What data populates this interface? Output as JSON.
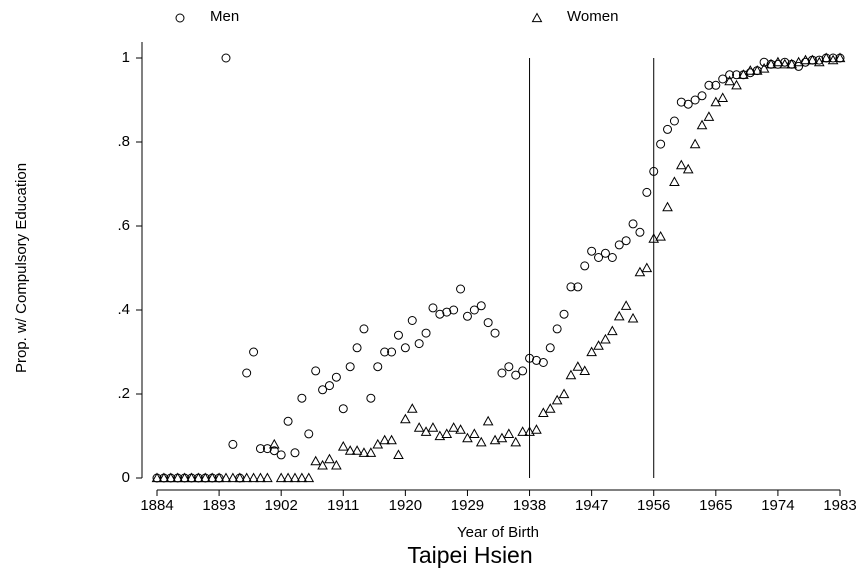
{
  "chart_data": {
    "type": "scatter",
    "title": "Taipei Hsien",
    "xlabel": "Year of Birth",
    "ylabel": "Prop. w/ Compulsory Education",
    "x": [
      1884,
      1885,
      1886,
      1887,
      1888,
      1889,
      1890,
      1891,
      1892,
      1893,
      1894,
      1895,
      1896,
      1897,
      1898,
      1899,
      1900,
      1901,
      1902,
      1903,
      1904,
      1905,
      1906,
      1907,
      1908,
      1909,
      1910,
      1911,
      1912,
      1913,
      1914,
      1915,
      1916,
      1917,
      1918,
      1919,
      1920,
      1921,
      1922,
      1923,
      1924,
      1925,
      1926,
      1927,
      1928,
      1929,
      1930,
      1931,
      1932,
      1933,
      1934,
      1935,
      1936,
      1937,
      1938,
      1939,
      1940,
      1941,
      1942,
      1943,
      1944,
      1945,
      1946,
      1947,
      1948,
      1949,
      1950,
      1951,
      1952,
      1953,
      1954,
      1955,
      1956,
      1957,
      1958,
      1959,
      1960,
      1961,
      1962,
      1963,
      1964,
      1965,
      1966,
      1967,
      1968,
      1969,
      1970,
      1971,
      1972,
      1973,
      1974,
      1975,
      1976,
      1977,
      1978,
      1979,
      1980,
      1981,
      1982,
      1983
    ],
    "series": [
      {
        "name": "Men",
        "marker": "circle",
        "color": "#000000",
        "values": [
          0,
          0,
          0,
          0,
          0,
          0,
          0,
          0,
          0,
          0,
          1,
          0.08,
          0,
          0.25,
          0.3,
          0.07,
          0.07,
          0.065,
          0.055,
          0.135,
          0.06,
          0.19,
          0.105,
          0.255,
          0.21,
          0.22,
          0.24,
          0.165,
          0.265,
          0.31,
          0.355,
          0.19,
          0.265,
          0.3,
          0.3,
          0.34,
          0.31,
          0.375,
          0.32,
          0.345,
          0.405,
          0.39,
          0.395,
          0.4,
          0.45,
          0.385,
          0.4,
          0.41,
          0.37,
          0.345,
          0.25,
          0.265,
          0.245,
          0.255,
          0.285,
          0.28,
          0.275,
          0.31,
          0.355,
          0.39,
          0.455,
          0.455,
          0.505,
          0.54,
          0.525,
          0.535,
          0.525,
          0.555,
          0.565,
          0.605,
          0.585,
          0.68,
          0.73,
          0.795,
          0.83,
          0.85,
          0.895,
          0.89,
          0.9,
          0.91,
          0.935,
          0.935,
          0.95,
          0.96,
          0.96,
          0.96,
          0.965,
          0.97,
          0.99,
          0.985,
          0.985,
          0.99,
          0.985,
          0.98,
          0.99,
          0.995,
          0.995,
          1,
          1,
          1
        ]
      },
      {
        "name": "Women",
        "marker": "triangle",
        "color": "#000000",
        "values": [
          0,
          0,
          0,
          0,
          0,
          0,
          0,
          0,
          0,
          0,
          0,
          0,
          0,
          0,
          0,
          0,
          0,
          0.08,
          0,
          0,
          0,
          0,
          0,
          0.04,
          0.03,
          0.045,
          0.03,
          0.075,
          0.065,
          0.065,
          0.06,
          0.06,
          0.08,
          0.09,
          0.09,
          0.055,
          0.14,
          0.165,
          0.12,
          0.11,
          0.12,
          0.1,
          0.105,
          0.12,
          0.115,
          0.095,
          0.105,
          0.085,
          0.135,
          0.09,
          0.095,
          0.105,
          0.085,
          0.11,
          0.11,
          0.115,
          0.155,
          0.165,
          0.185,
          0.2,
          0.245,
          0.265,
          0.255,
          0.3,
          0.315,
          0.33,
          0.35,
          0.385,
          0.41,
          0.38,
          0.49,
          0.5,
          0.57,
          0.575,
          0.645,
          0.705,
          0.745,
          0.735,
          0.795,
          0.84,
          0.86,
          0.895,
          0.905,
          0.945,
          0.935,
          0.96,
          0.97,
          0.97,
          0.975,
          0.985,
          0.99,
          0.985,
          0.985,
          0.99,
          0.995,
          0.995,
          0.99,
          1,
          0.995,
          1
        ]
      }
    ],
    "xlim": [
      1884,
      1983
    ],
    "xticks": [
      1884,
      1893,
      1902,
      1911,
      1920,
      1929,
      1938,
      1947,
      1956,
      1965,
      1974,
      1983
    ],
    "ylim": [
      0,
      1
    ],
    "yticks": [
      0,
      {
        "value": 0.2,
        "label": ".2"
      },
      {
        "value": 0.4,
        "label": ".4"
      },
      {
        "value": 0.6,
        "label": ".6"
      },
      {
        "value": 0.8,
        "label": ".8"
      },
      1
    ],
    "vlines": [
      1938,
      1956
    ],
    "legend": "top",
    "grid": false
  }
}
